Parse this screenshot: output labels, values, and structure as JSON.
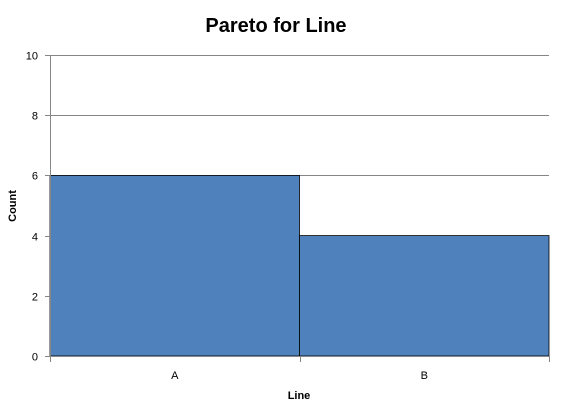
{
  "chart_data": {
    "type": "bar",
    "title": "Pareto for Line",
    "xlabel": "Line",
    "ylabel": "Count",
    "categories": [
      "A",
      "B"
    ],
    "values": [
      6,
      4
    ],
    "ylim": [
      0,
      10
    ],
    "yticks": [
      0,
      2,
      4,
      6,
      8,
      10
    ],
    "grid": true,
    "bar_color": "#4f81bd",
    "bar_edge_color": "#000000",
    "grid_color": "#868686"
  }
}
